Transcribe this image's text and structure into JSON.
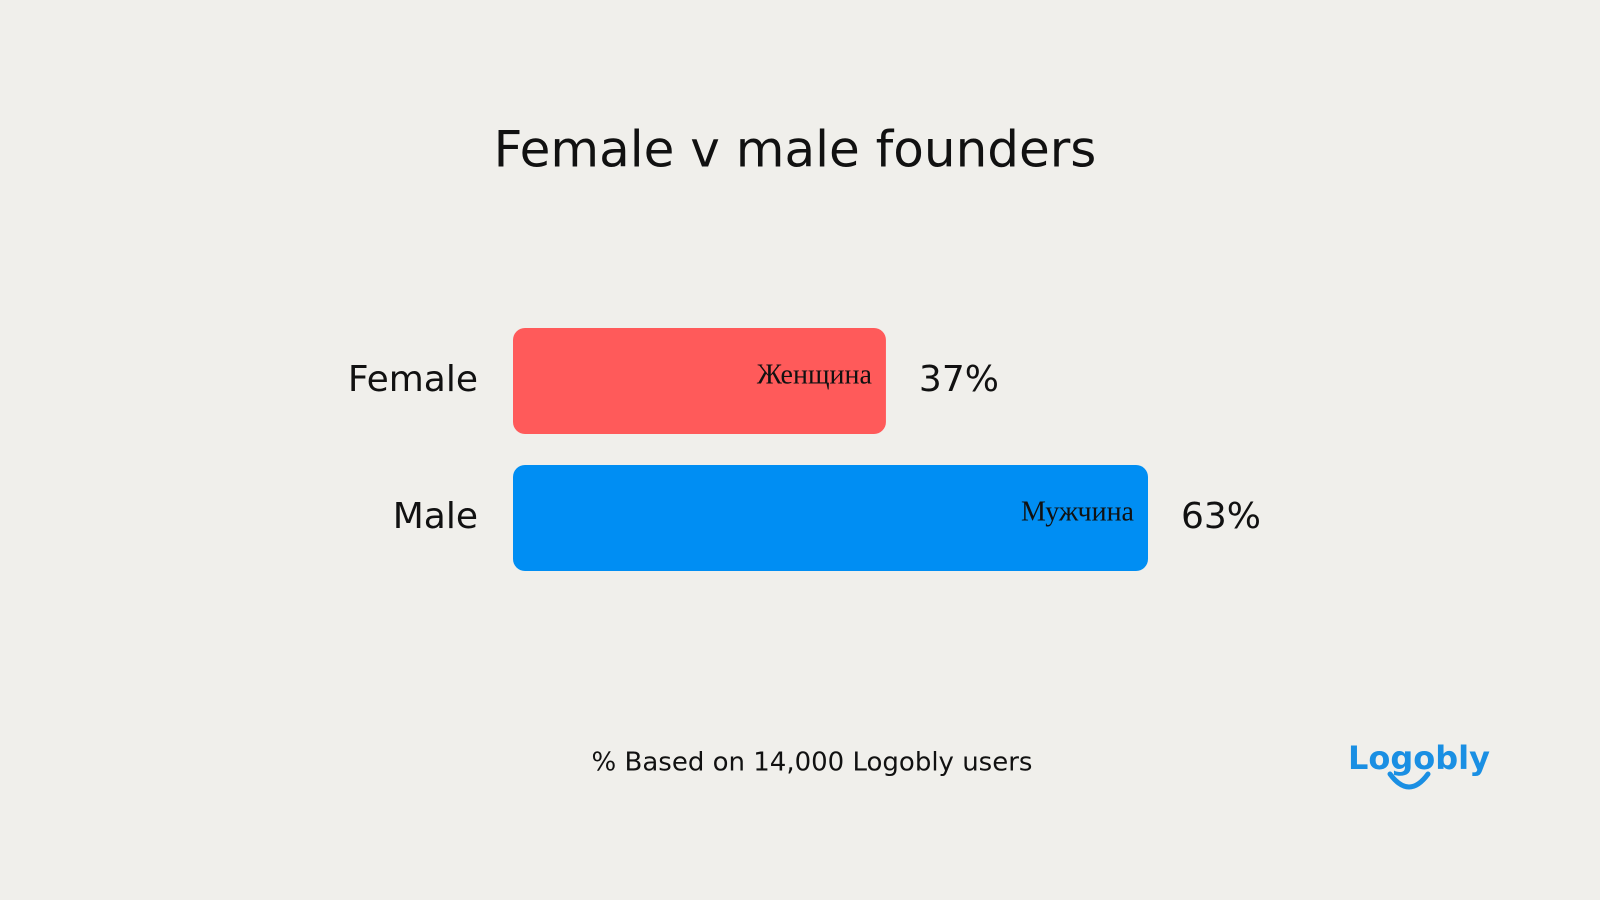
{
  "chart_data": {
    "type": "hbar",
    "title": "Female v male founders",
    "categories": [
      "Female",
      "Male"
    ],
    "values": [
      37,
      63
    ],
    "value_labels": [
      "37%",
      "63%"
    ],
    "bar_labels": [
      "Женщина",
      "Мужчина"
    ],
    "colors": [
      "#ff5a5a",
      "#008ef3"
    ],
    "footnote": "% Based on 14,000 Logobly users",
    "logo": "Logobly"
  }
}
